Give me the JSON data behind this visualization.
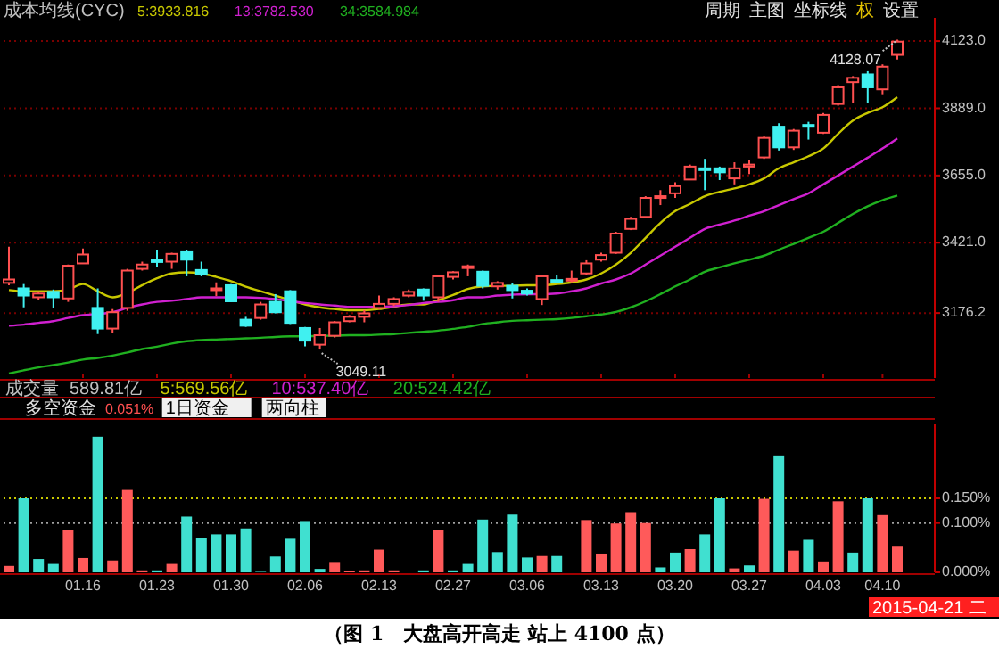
{
  "chart_data": [
    {
      "type": "candlestick",
      "title": "成本均线(CYC)",
      "legend": "top left",
      "tick_labels": "y",
      "grid": "y",
      "categories": [
        null,
        null,
        null,
        null,
        null,
        "01.16",
        null,
        null,
        null,
        null,
        "01.23",
        null,
        null,
        null,
        null,
        "01.30",
        null,
        null,
        null,
        null,
        "02.06",
        null,
        null,
        null,
        null,
        "02.13",
        null,
        null,
        null,
        null,
        "02.27",
        null,
        null,
        null,
        null,
        "03.06",
        null,
        null,
        null,
        null,
        "03.13",
        null,
        null,
        null,
        null,
        "03.20",
        null,
        null,
        null,
        null,
        "03.27",
        null,
        null,
        null,
        null,
        "04.03",
        null,
        null,
        null,
        "04.10",
        null
      ],
      "ohlc": [
        [
          3281,
          3407,
          3273,
          3293
        ],
        [
          3262,
          3277,
          3196,
          3237
        ],
        [
          3231,
          3252,
          3223,
          3244
        ],
        [
          3250,
          3258,
          3194,
          3231
        ],
        [
          3227,
          3345,
          3215,
          3341
        ],
        [
          3349,
          3401,
          3349,
          3380
        ],
        [
          3194,
          3262,
          3103,
          3122
        ],
        [
          3122,
          3190,
          3107,
          3179
        ],
        [
          3194,
          3330,
          3184,
          3324
        ],
        [
          3330,
          3355,
          3324,
          3345
        ],
        [
          3360,
          3397,
          3335,
          3358
        ],
        [
          3355,
          3386,
          3330,
          3382
        ],
        [
          3391,
          3397,
          3304,
          3362
        ],
        [
          3326,
          3355,
          3304,
          3310
        ],
        [
          3258,
          3283,
          3235,
          3262
        ],
        [
          3273,
          3277,
          3215,
          3217
        ],
        [
          3153,
          3163,
          3128,
          3132
        ],
        [
          3159,
          3215,
          3153,
          3206
        ],
        [
          3215,
          3242,
          3175,
          3179
        ],
        [
          3252,
          3256,
          3138,
          3142
        ],
        [
          3124,
          3128,
          3060,
          3080
        ],
        [
          3066,
          3124,
          3049.11,
          3099
        ],
        [
          3097,
          3148,
          3091,
          3144
        ],
        [
          3148,
          3169,
          3144,
          3163
        ],
        [
          3163,
          3186,
          3144,
          3175
        ],
        [
          3194,
          3237,
          3190,
          3208
        ],
        [
          3208,
          3231,
          3200,
          3225
        ],
        [
          3237,
          3258,
          3231,
          3250
        ],
        [
          3258,
          3262,
          3219,
          3237
        ],
        [
          3231,
          3308,
          3215,
          3304
        ],
        [
          3302,
          3322,
          3293,
          3318
        ],
        [
          3335,
          3345,
          3304,
          3339
        ],
        [
          3320,
          3324,
          3262,
          3271
        ],
        [
          3269,
          3287,
          3258,
          3281
        ],
        [
          3271,
          3279,
          3227,
          3256
        ],
        [
          3254,
          3262,
          3237,
          3244
        ],
        [
          3225,
          3308,
          3204,
          3304
        ],
        [
          3291,
          3308,
          3279,
          3287
        ],
        [
          3289,
          3324,
          3283,
          3295
        ],
        [
          3314,
          3360,
          3308,
          3349
        ],
        [
          3362,
          3386,
          3355,
          3378
        ],
        [
          3386,
          3459,
          3382,
          3453
        ],
        [
          3469,
          3511,
          3465,
          3504
        ],
        [
          3511,
          3583,
          3506,
          3577
        ],
        [
          3577,
          3604,
          3552,
          3583
        ],
        [
          3593,
          3631,
          3577,
          3618
        ],
        [
          3641,
          3693,
          3639,
          3686
        ],
        [
          3680,
          3713,
          3604,
          3674
        ],
        [
          3680,
          3686,
          3639,
          3666
        ],
        [
          3645,
          3701,
          3624,
          3680
        ],
        [
          3686,
          3707,
          3660,
          3693
        ],
        [
          3718,
          3794,
          3713,
          3786
        ],
        [
          3825,
          3837,
          3742,
          3753
        ],
        [
          3753,
          3817,
          3744,
          3811
        ],
        [
          3831,
          3842,
          3780,
          3827
        ],
        [
          3804,
          3873,
          3800,
          3866
        ],
        [
          3904,
          3970,
          3898,
          3962
        ],
        [
          3980,
          4001,
          3908,
          3995
        ],
        [
          4007,
          4018,
          3908,
          3962
        ],
        [
          3955,
          4042,
          3935,
          4034
        ],
        [
          4075,
          4128.07,
          4059,
          4121
        ]
      ],
      "colors": [
        "#ff5050",
        "#40f0f0",
        "#ff5050",
        "#40f0f0",
        "#ff5050",
        "#ff5050",
        "#40f0f0",
        "#ff5050",
        "#ff5050",
        "#ff5050",
        "#40f0f0",
        "#ff5050",
        "#40f0f0",
        "#40f0f0",
        "#ff5050",
        "#40f0f0",
        "#40f0f0",
        "#ff5050",
        "#40f0f0",
        "#40f0f0",
        "#40f0f0",
        "#ff5050",
        "#ff5050",
        "#ff5050",
        "#ff5050",
        "#ff5050",
        "#ff5050",
        "#ff5050",
        "#40f0f0",
        "#ff5050",
        "#ff5050",
        "#ff5050",
        "#40f0f0",
        "#ff5050",
        "#40f0f0",
        "#40f0f0",
        "#ff5050",
        "#40f0f0",
        "#ff5050",
        "#ff5050",
        "#ff5050",
        "#ff5050",
        "#ff5050",
        "#ff5050",
        "#ff5050",
        "#ff5050",
        "#ff5050",
        "#40f0f0",
        "#40f0f0",
        "#ff5050",
        "#ff5050",
        "#ff5050",
        "#40f0f0",
        "#ff5050",
        "#40f0f0",
        "#ff5050",
        "#ff5050",
        "#ff5050",
        "#40f0f0",
        "#ff5050",
        "#ff5050"
      ],
      "series": [
        {
          "type": "line",
          "name": "5:3933.816",
          "color": "#c8c800",
          "values": [
            3256,
            3252,
            3252,
            3252,
            3258,
            3277,
            3252,
            3231,
            3246,
            3273,
            3297,
            3314,
            3318,
            3314,
            3302,
            3287,
            3268,
            3252,
            3237,
            3221,
            3206,
            3196,
            3190,
            3186,
            3186,
            3190,
            3198,
            3206,
            3206,
            3221,
            3239,
            3260,
            3269,
            3271,
            3271,
            3273,
            3273,
            3277,
            3283,
            3293,
            3314,
            3345,
            3386,
            3438,
            3490,
            3531,
            3556,
            3583,
            3598,
            3610,
            3624,
            3645,
            3680,
            3701,
            3722,
            3749,
            3800,
            3846,
            3873,
            3893,
            3928
          ]
        },
        {
          "type": "line",
          "name": "13:3782.530",
          "color": "#d020d0",
          "values": [
            3132,
            3136,
            3142,
            3148,
            3159,
            3169,
            3173,
            3179,
            3194,
            3206,
            3215,
            3219,
            3225,
            3231,
            3231,
            3231,
            3231,
            3229,
            3225,
            3217,
            3211,
            3206,
            3202,
            3198,
            3198,
            3198,
            3200,
            3204,
            3211,
            3215,
            3221,
            3231,
            3231,
            3237,
            3240,
            3242,
            3242,
            3244,
            3252,
            3262,
            3279,
            3293,
            3314,
            3345,
            3376,
            3407,
            3438,
            3469,
            3484,
            3498,
            3515,
            3531,
            3552,
            3573,
            3593,
            3624,
            3655,
            3686,
            3717,
            3749,
            3784
          ]
        },
        {
          "type": "line",
          "name": "34:3584.984",
          "color": "#20b020",
          "values": [
            2966,
            2977,
            2987,
            2995,
            3004,
            3014,
            3020,
            3028,
            3039,
            3051,
            3059,
            3070,
            3078,
            3082,
            3084,
            3086,
            3088,
            3090,
            3093,
            3095,
            3095,
            3097,
            3097,
            3099,
            3099,
            3101,
            3103,
            3107,
            3111,
            3115,
            3121,
            3128,
            3138,
            3144,
            3149,
            3151,
            3153,
            3155,
            3159,
            3165,
            3171,
            3180,
            3196,
            3217,
            3242,
            3269,
            3293,
            3320,
            3335,
            3349,
            3362,
            3376,
            3397,
            3417,
            3438,
            3459,
            3490,
            3521,
            3548,
            3569,
            3585
          ]
        }
      ],
      "ylim": [
        2950,
        4204
      ],
      "yticks": [
        {
          "value": 4123,
          "label": "4123.0"
        },
        {
          "value": 3889,
          "label": "3889.0"
        },
        {
          "value": 3655,
          "label": "3655.0"
        },
        {
          "value": 3421,
          "label": "3421.0"
        },
        {
          "value": 3176.2,
          "label": "3176.2"
        }
      ],
      "annotations": [
        "3049.11",
        "4128.07",
        "周期",
        "主图",
        "坐标线",
        "权",
        "设置"
      ]
    },
    {
      "type": "bar",
      "title": "多空资金",
      "categories": [
        null,
        null,
        null,
        null,
        null,
        "01.16",
        null,
        null,
        null,
        null,
        "01.23",
        null,
        null,
        null,
        null,
        "01.30",
        null,
        null,
        null,
        null,
        "02.06",
        null,
        null,
        null,
        null,
        "02.13",
        null,
        null,
        null,
        null,
        "02.27",
        null,
        null,
        null,
        null,
        "03.06",
        null,
        null,
        null,
        null,
        "03.13",
        null,
        null,
        null,
        null,
        "03.20",
        null,
        null,
        null,
        null,
        "03.27",
        null,
        null,
        null,
        null,
        "04.03",
        null,
        null,
        null,
        "04.10",
        null
      ],
      "values": [
        0.013,
        0.15,
        0.027,
        0.017,
        0.085,
        0.029,
        0.275,
        0.024,
        0.167,
        0.004,
        0.004,
        0.017,
        0.113,
        0.07,
        0.077,
        0.077,
        0.089,
        0.001,
        0.032,
        0.068,
        0.104,
        0.007,
        0.021,
        0.002,
        0.004,
        0.046,
        0.004,
        0,
        0.004,
        0.085,
        0.004,
        0.017,
        0.107,
        0.041,
        0.117,
        0.03,
        0.033,
        0.033,
        0,
        0.106,
        0.038,
        0.099,
        0.122,
        0.1,
        0.01,
        0.04,
        0.047,
        0.077,
        0.15,
        0.008,
        0.014,
        0.149,
        0.237,
        0.044,
        0.066,
        0.022,
        0.144,
        0.04,
        0.15,
        0.116,
        0.052
      ],
      "colors": [
        "#ff5a5a",
        "#40e0d0",
        "#40e0d0",
        "#40e0d0",
        "#ff5a5a",
        "#ff5a5a",
        "#40e0d0",
        "#ff5a5a",
        "#ff5a5a",
        "#ff5a5a",
        "#40e0d0",
        "#ff5a5a",
        "#40e0d0",
        "#40e0d0",
        "#40e0d0",
        "#40e0d0",
        "#40e0d0",
        "#40e0d0",
        "#40e0d0",
        "#40e0d0",
        "#40e0d0",
        "#40e0d0",
        "#ff5a5a",
        "#ff5a5a",
        "#ff5a5a",
        "#ff5a5a",
        "#ff5a5a",
        "#ff5a5a",
        "#40e0d0",
        "#ff5a5a",
        "#40e0d0",
        "#40e0d0",
        "#40e0d0",
        "#40e0d0",
        "#40e0d0",
        "#40e0d0",
        "#ff5a5a",
        "#40e0d0",
        "#ff5a5a",
        "#ff5a5a",
        "#ff5a5a",
        "#ff5a5a",
        "#ff5a5a",
        "#ff5a5a",
        "#40e0d0",
        "#40e0d0",
        "#ff5a5a",
        "#40e0d0",
        "#40e0d0",
        "#ff5a5a",
        "#40e0d0",
        "#ff5a5a",
        "#40e0d0",
        "#ff5a5a",
        "#40e0d0",
        "#ff5a5a",
        "#ff5a5a",
        "#40e0d0",
        "#40e0d0",
        "#ff5a5a",
        "#ff5a5a"
      ],
      "ylim": [
        0,
        0.3
      ],
      "yticks": [
        {
          "value": 0,
          "label": "0.000%"
        },
        {
          "value": 0.1,
          "label": "0.100%"
        },
        {
          "value": 0.15,
          "label": "0.150%"
        }
      ],
      "ref_lines": [
        {
          "axis": "y",
          "value": 0.15,
          "color": "#c8c800",
          "line_style": "dotted"
        },
        {
          "axis": "y",
          "value": 0.1,
          "color": "#a0a0a0",
          "line_style": "dotted"
        }
      ],
      "annotations": [
        "成交量",
        "589.81亿",
        "5:569.56亿",
        "10:537.40亿",
        "20:524.42亿",
        "0.051%",
        "1日资金",
        "两向柱",
        "2015-04-21 二",
        "（图 1　大盘高开高走 站上 4100 点）"
      ]
    }
  ]
}
